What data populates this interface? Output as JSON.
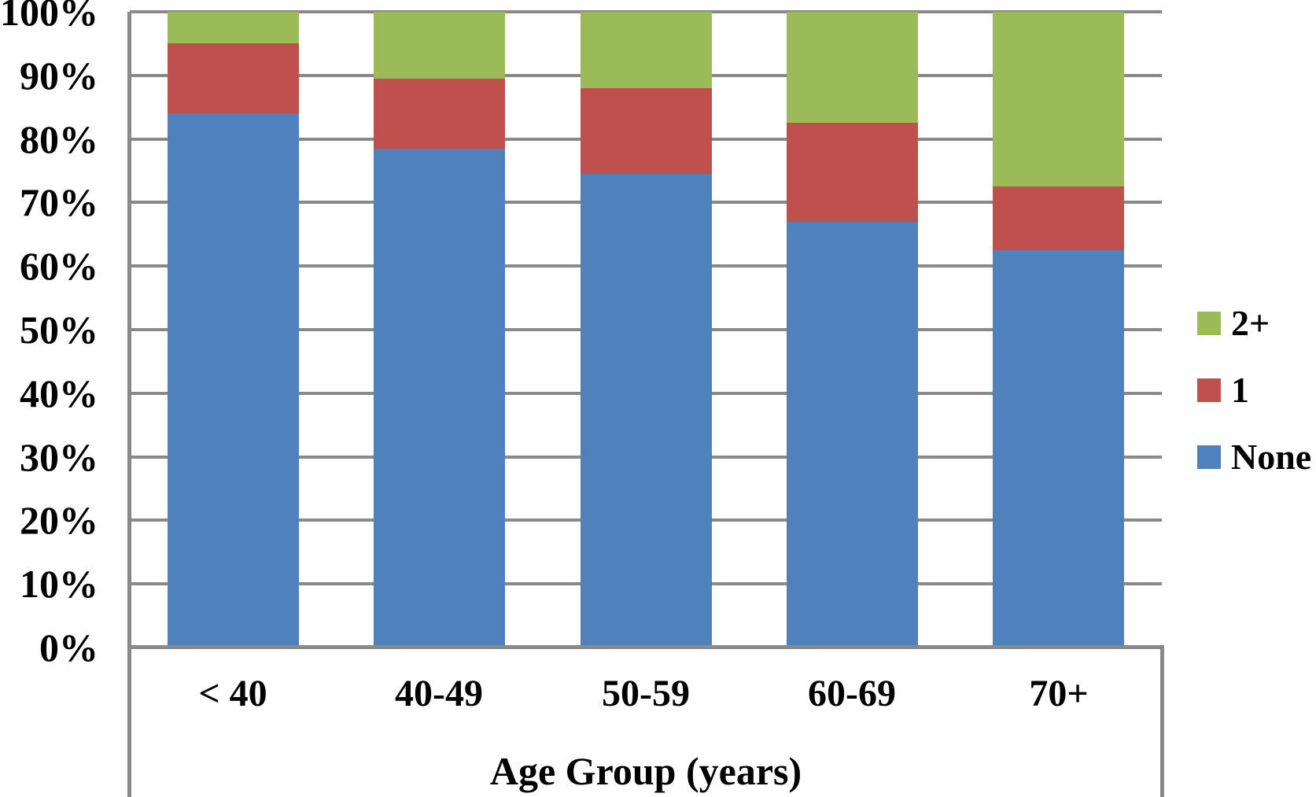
{
  "chart_data": {
    "type": "bar",
    "subtype": "stacked-100-percent",
    "title": "",
    "xlabel": "Age Group (years)",
    "ylabel": "",
    "categories": [
      "< 40",
      "40-49",
      "50-59",
      "60-69",
      "70+"
    ],
    "series": [
      {
        "name": "None",
        "color": "#4f81bd",
        "values": [
          84,
          78.5,
          74.5,
          67,
          62.5
        ]
      },
      {
        "name": "1",
        "color": "#c0504d",
        "values": [
          11,
          11,
          13.5,
          15.5,
          10
        ]
      },
      {
        "name": "2+",
        "color": "#9bbb59",
        "values": [
          5,
          10.5,
          12,
          17.5,
          27.5
        ]
      }
    ],
    "y_ticks": [
      "100%",
      "90%",
      "80%",
      "70%",
      "60%",
      "50%",
      "40%",
      "30%",
      "20%",
      "10%",
      "0%"
    ],
    "ylim": [
      0,
      100
    ],
    "grid": true,
    "legend": {
      "position": "right",
      "items": [
        {
          "label": "2+",
          "color": "#9bbb59"
        },
        {
          "label": "1",
          "color": "#c0504d"
        },
        {
          "label": "None",
          "color": "#4f81bd"
        }
      ]
    }
  },
  "colors": {
    "background": "#ffffff",
    "gridline": "#898989",
    "axis": "#898989",
    "text": "#000000"
  }
}
